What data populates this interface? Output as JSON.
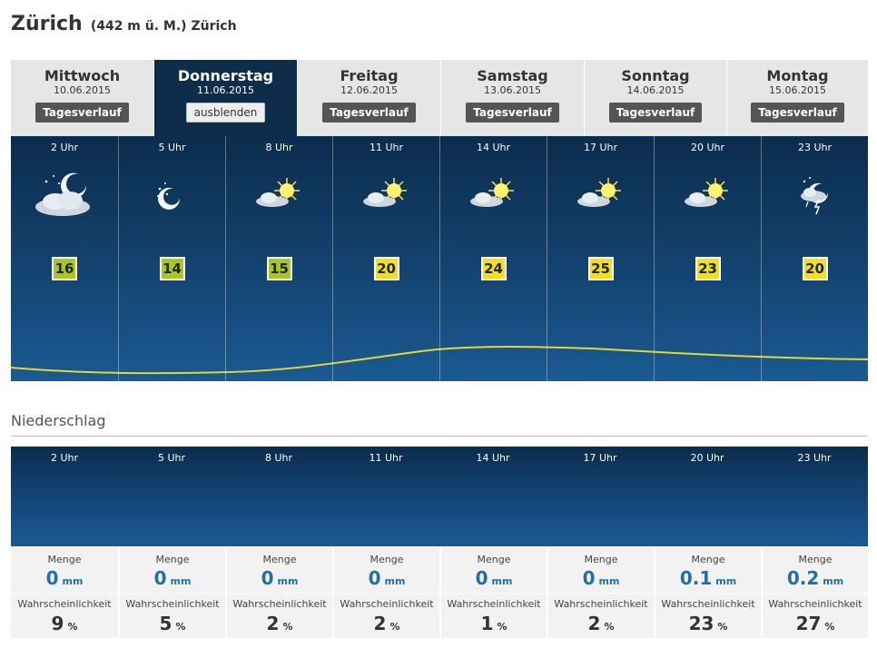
{
  "header": {
    "city": "Zürich",
    "subtitle": "(442 m ü. M.) Zürich"
  },
  "days": [
    {
      "day": "Mittwoch",
      "date": "10.06.2015",
      "button": "Tagesverlauf",
      "active": false
    },
    {
      "day": "Donnerstag",
      "date": "11.06.2015",
      "button": "ausblenden",
      "active": true
    },
    {
      "day": "Freitag",
      "date": "12.06.2015",
      "button": "Tagesverlauf",
      "active": false
    },
    {
      "day": "Samstag",
      "date": "13.06.2015",
      "button": "Tagesverlauf",
      "active": false
    },
    {
      "day": "Sonntag",
      "date": "14.06.2015",
      "button": "Tagesverlauf",
      "active": false
    },
    {
      "day": "Montag",
      "date": "15.06.2015",
      "button": "Tagesverlauf",
      "active": false
    }
  ],
  "forecast": [
    {
      "hour": "2 Uhr",
      "icon": "cloudy-night-moon-icon",
      "temp": "16",
      "temp_color": "#a8c81e"
    },
    {
      "hour": "5 Uhr",
      "icon": "clear-night-moon-icon",
      "temp": "14",
      "temp_color": "#a8c81e"
    },
    {
      "hour": "8 Uhr",
      "icon": "sun-with-cloud-icon",
      "temp": "15",
      "temp_color": "#a8c81e"
    },
    {
      "hour": "11 Uhr",
      "icon": "sun-with-cloud-icon",
      "temp": "20",
      "temp_color": "#f2e01c"
    },
    {
      "hour": "14 Uhr",
      "icon": "sun-with-cloud-icon",
      "temp": "24",
      "temp_color": "#f2e01c"
    },
    {
      "hour": "17 Uhr",
      "icon": "sun-with-cloud-icon",
      "temp": "25",
      "temp_color": "#f2e01c"
    },
    {
      "hour": "20 Uhr",
      "icon": "sun-with-cloud-icon",
      "temp": "23",
      "temp_color": "#f2e01c"
    },
    {
      "hour": "23 Uhr",
      "icon": "thunderstorm-night-icon",
      "temp": "20",
      "temp_color": "#f2e01c"
    }
  ],
  "precipitation": {
    "title": "Niederschlag",
    "menge_label": "Menge",
    "wahr_label": "Wahrscheinlichkeit",
    "mm_unit": "mm",
    "pct_unit": "%",
    "hours": [
      {
        "hour": "2 Uhr",
        "menge": "0",
        "wahr": "9"
      },
      {
        "hour": "5 Uhr",
        "menge": "0",
        "wahr": "5"
      },
      {
        "hour": "8 Uhr",
        "menge": "0",
        "wahr": "2"
      },
      {
        "hour": "11 Uhr",
        "menge": "0",
        "wahr": "2"
      },
      {
        "hour": "14 Uhr",
        "menge": "0",
        "wahr": "1"
      },
      {
        "hour": "17 Uhr",
        "menge": "0",
        "wahr": "2"
      },
      {
        "hour": "20 Uhr",
        "menge": "0.1",
        "wahr": "23"
      },
      {
        "hour": "23 Uhr",
        "menge": "0.2",
        "wahr": "27"
      }
    ]
  },
  "colors": {
    "curve": "#e6d43a",
    "active_tab": "#0d2d4a",
    "mm_value": "#1f6fa8"
  }
}
